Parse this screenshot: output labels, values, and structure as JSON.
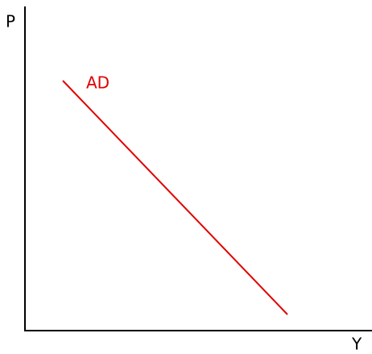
{
  "axes": {
    "y_label": "P",
    "x_label": "Y"
  },
  "curve": {
    "label": "AD"
  }
}
